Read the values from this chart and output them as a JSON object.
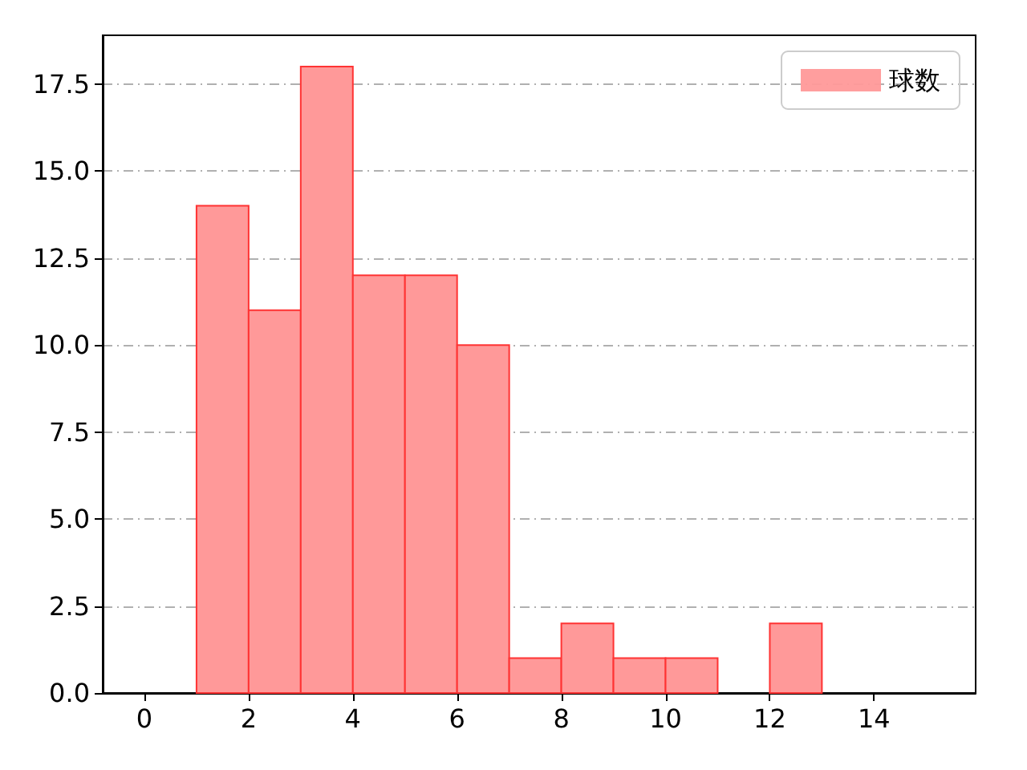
{
  "chart_data": {
    "type": "histogram",
    "bins": [
      1,
      2,
      3,
      4,
      5,
      6,
      7,
      8,
      9,
      10,
      11,
      12,
      13
    ],
    "series": [
      {
        "name": "球数",
        "color": "#ff9999",
        "values": [
          14,
          11,
          18,
          12,
          12,
          10,
          1,
          2,
          1,
          1,
          0,
          2
        ]
      }
    ],
    "xlim": [
      -0.8,
      15.95
    ],
    "xticks": [
      0,
      2,
      4,
      6,
      8,
      10,
      12,
      14
    ],
    "ylim": [
      0,
      18.9
    ],
    "yticks": [
      {
        "value": 0,
        "label": "0.0"
      },
      {
        "value": 2.5,
        "label": "2.5"
      },
      {
        "value": 5,
        "label": "5.0"
      },
      {
        "value": 7.5,
        "label": "7.5"
      },
      {
        "value": 10,
        "label": "10.0"
      },
      {
        "value": 12.5,
        "label": "12.5"
      },
      {
        "value": 15,
        "label": "15.0"
      },
      {
        "value": 17.5,
        "label": "17.5"
      }
    ],
    "grid": "y",
    "legend": "top right"
  }
}
